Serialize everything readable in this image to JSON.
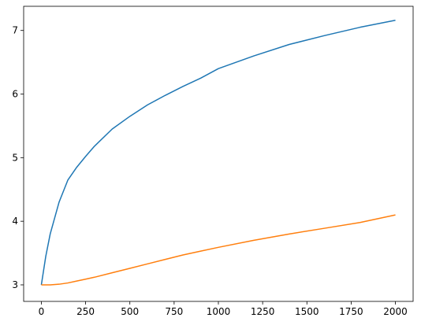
{
  "chart_data": {
    "type": "line",
    "x": [
      0,
      25,
      50,
      100,
      150,
      200,
      250,
      300,
      400,
      500,
      600,
      700,
      800,
      900,
      1000,
      1200,
      1400,
      1600,
      1800,
      2000
    ],
    "series": [
      {
        "color": "#1f77b4",
        "values": [
          3.0,
          3.45,
          3.8,
          4.3,
          4.65,
          4.85,
          5.02,
          5.18,
          5.45,
          5.65,
          5.83,
          5.98,
          6.12,
          6.25,
          6.4,
          6.6,
          6.78,
          6.92,
          7.05,
          7.16
        ]
      },
      {
        "color": "#ff7f0e",
        "values": [
          3.0,
          3.0,
          3.0,
          3.01,
          3.03,
          3.06,
          3.09,
          3.12,
          3.19,
          3.26,
          3.33,
          3.4,
          3.47,
          3.53,
          3.59,
          3.7,
          3.8,
          3.89,
          3.98,
          4.1
        ]
      }
    ],
    "xlim": [
      -100,
      2100
    ],
    "ylim": [
      2.74,
      7.38
    ],
    "xticks": [
      0,
      250,
      500,
      750,
      1000,
      1250,
      1500,
      1750,
      2000
    ],
    "yticks": [
      3,
      4,
      5,
      6,
      7
    ],
    "grid": false
  }
}
